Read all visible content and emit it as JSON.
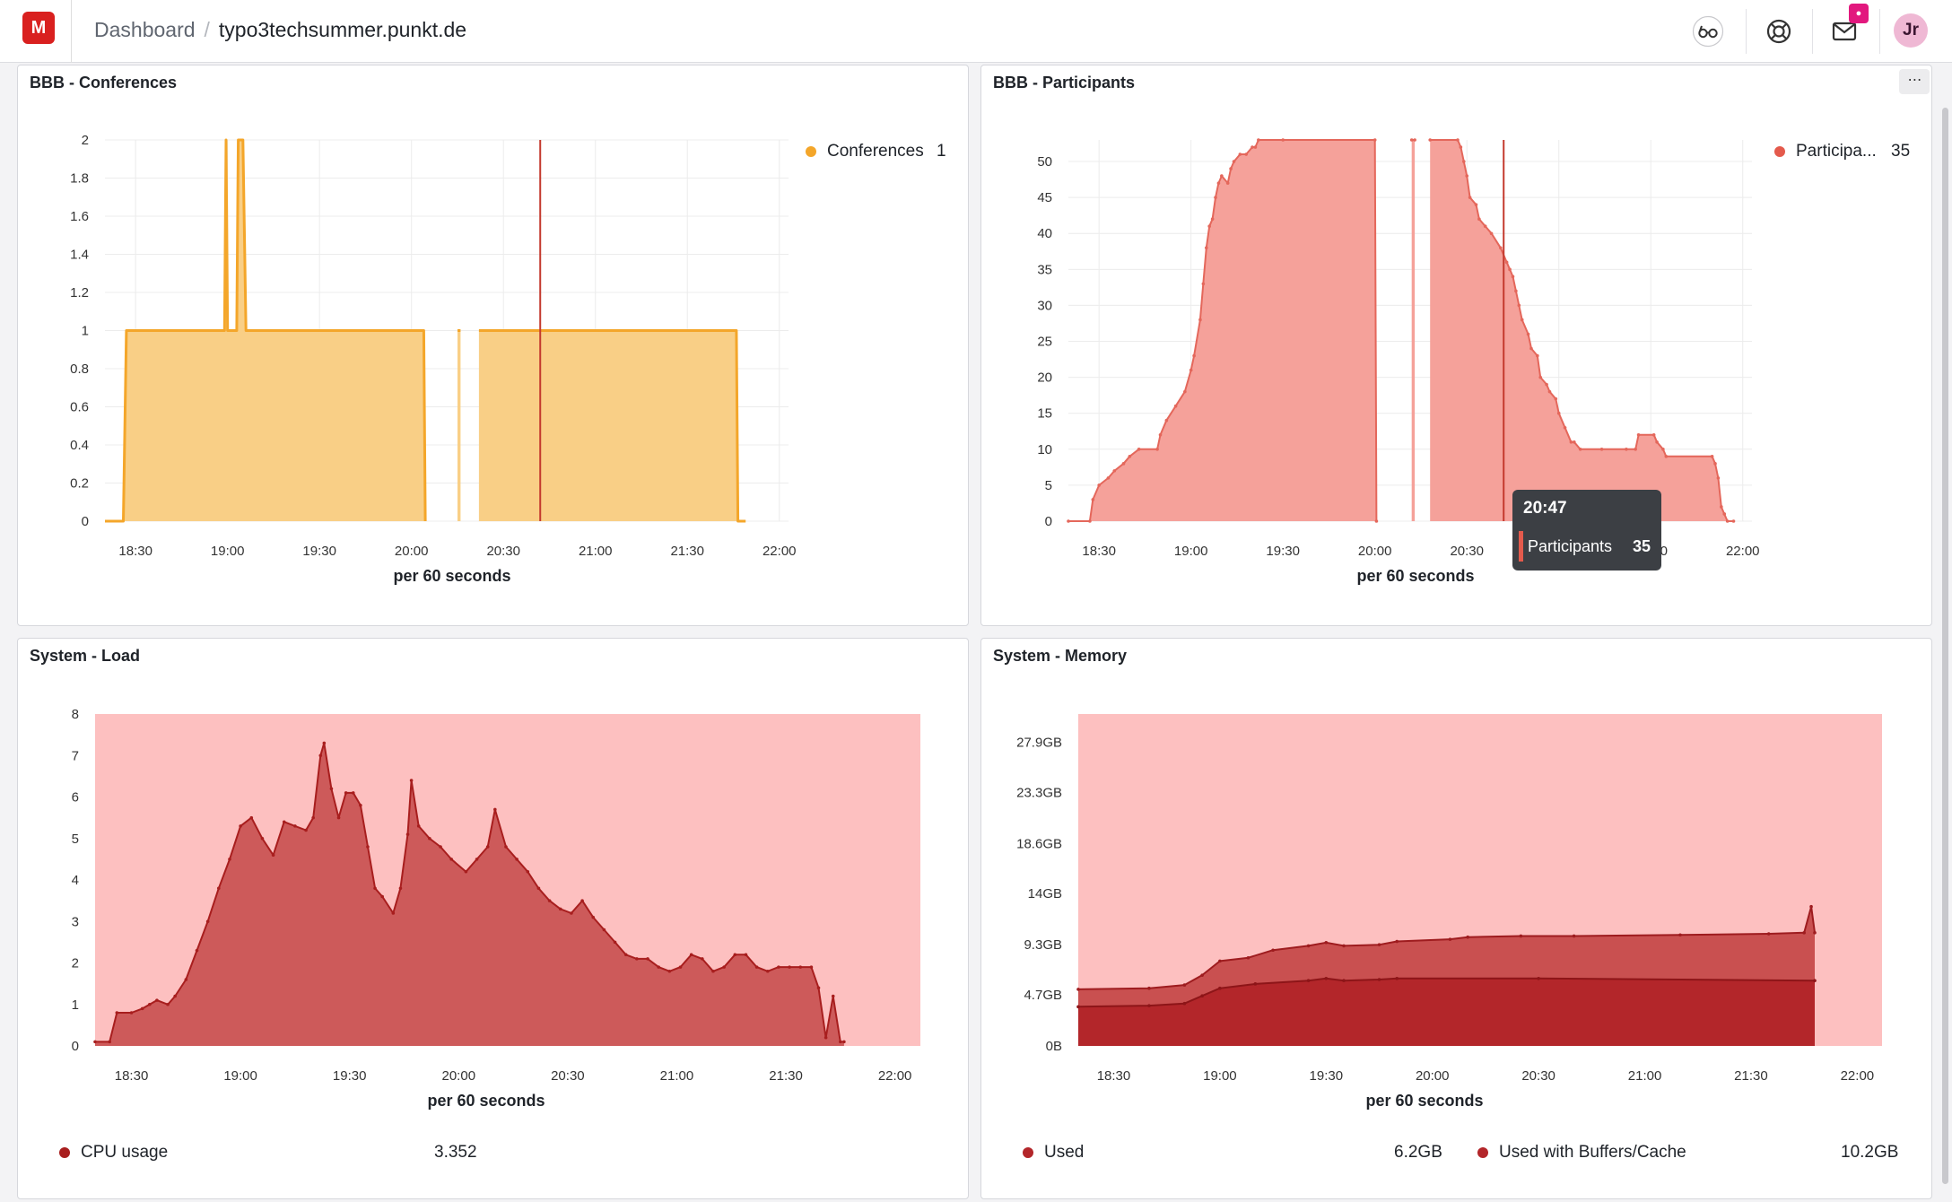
{
  "header": {
    "logo_letter": "M",
    "breadcrumb_parent": "Dashboard",
    "breadcrumb_separator": "/",
    "breadcrumb_current": "typo3techsummer.punkt.de",
    "icons": [
      "glasses-icon",
      "support-lifebuoy-icon",
      "mail-icon"
    ],
    "avatar_initials": "Jr"
  },
  "panels": {
    "conferences": {
      "title": "BBB - Conferences",
      "legend_name": "Conferences",
      "legend_value": "1",
      "xlabel": "per 60 seconds"
    },
    "participants": {
      "title": "BBB - Participants",
      "legend_name": "Participa...",
      "legend_value": "35",
      "xlabel": "per 60 seconds",
      "menu_label": "⋯",
      "tooltip": {
        "time": "20:47",
        "series": "Participants",
        "value": "35"
      }
    },
    "load": {
      "title": "System - Load",
      "legend_name": "CPU usage",
      "legend_value": "3.352",
      "xlabel": "per 60 seconds"
    },
    "memory": {
      "title": "System - Memory",
      "legend_used_name": "Used",
      "legend_used_value": "6.2GB",
      "legend_buffers_name": "Used with Buffers/Cache",
      "legend_buffers_value": "10.2GB",
      "xlabel": "per 60 seconds"
    }
  },
  "colors": {
    "conferences": "#f4a62a",
    "conferences_fill": "#f9cf86",
    "participants": "#e4675b",
    "participants_fill": "#f5a19a",
    "load_line": "#a81e1e",
    "load_fill": "#cd5a5a",
    "load_bg": "#fdc0c0",
    "mem_used": "#b3262a",
    "mem_buffers": "#c95050",
    "mem_bg": "#fdc0c0",
    "crosshair": "#c43a2e"
  },
  "chart_data": [
    {
      "id": "conferences",
      "type": "area",
      "title": "BBB - Conferences",
      "xlabel": "per 60 seconds",
      "ylabel": "",
      "x_ticks": [
        "18:30",
        "19:00",
        "19:30",
        "20:00",
        "20:30",
        "21:00",
        "21:30",
        "22:00"
      ],
      "x_range_min": [
        -10,
        213
      ],
      "ylim": [
        0,
        2
      ],
      "y_ticks": [
        "0",
        "0.2",
        "0.4",
        "0.6",
        "0.8",
        "1",
        "1.2",
        "1.4",
        "1.6",
        "1.8",
        "2"
      ],
      "series": [
        {
          "name": "Conferences",
          "segments": [
            [
              [
                -10,
                0
              ],
              [
                -4,
                0
              ],
              [
                -3,
                1
              ],
              [
                0,
                1
              ],
              [
                29,
                1
              ],
              [
                29.5,
                2
              ],
              [
                30,
                1
              ],
              [
                33,
                1
              ],
              [
                33.5,
                2
              ],
              [
                35,
                2
              ],
              [
                36,
                1
              ],
              [
                45,
                1
              ],
              [
                60,
                1
              ],
              [
                94,
                1
              ],
              [
                94.5,
                0
              ]
            ],
            [
              [
                105,
                1
              ],
              [
                106,
                1
              ]
            ],
            [
              [
                112,
                1
              ],
              [
                130,
                1
              ],
              [
                160,
                1
              ],
              [
                196,
                1
              ],
              [
                196.5,
                0
              ],
              [
                199,
                0
              ]
            ]
          ]
        }
      ],
      "crosshair_min": 132,
      "grid": true,
      "legend": "top-right"
    },
    {
      "id": "participants",
      "type": "area",
      "title": "BBB - Participants",
      "xlabel": "per 60 seconds",
      "ylabel": "",
      "x_ticks": [
        "18:30",
        "19:00",
        "19:30",
        "20:00",
        "20:30",
        "21:00",
        "21:30",
        "22:00"
      ],
      "x_range_min": [
        -10,
        213
      ],
      "ylim": [
        0,
        53
      ],
      "y_ticks": [
        "0",
        "5",
        "10",
        "15",
        "20",
        "25",
        "30",
        "35",
        "40",
        "45",
        "50"
      ],
      "series": [
        {
          "name": "Participants",
          "segments": [
            [
              [
                -10,
                0
              ],
              [
                -3,
                0
              ],
              [
                -2,
                3
              ],
              [
                0,
                5
              ],
              [
                3,
                6
              ],
              [
                5,
                7
              ],
              [
                8,
                8
              ],
              [
                10,
                9
              ],
              [
                13,
                10
              ],
              [
                19,
                10
              ],
              [
                20,
                12
              ],
              [
                22,
                14
              ],
              [
                25,
                16
              ],
              [
                28,
                18
              ],
              [
                30,
                21
              ],
              [
                31,
                23
              ],
              [
                33,
                28
              ],
              [
                34,
                33
              ],
              [
                35,
                38
              ],
              [
                36,
                41
              ],
              [
                37,
                42
              ],
              [
                38,
                45
              ],
              [
                39,
                47
              ],
              [
                40,
                48
              ],
              [
                42,
                47
              ],
              [
                43,
                49
              ],
              [
                44,
                50
              ],
              [
                46,
                51
              ],
              [
                48,
                51
              ],
              [
                50,
                52
              ],
              [
                51,
                52
              ],
              [
                52,
                53
              ],
              [
                60,
                53
              ],
              [
                90,
                53
              ],
              [
                90.5,
                0
              ]
            ],
            [
              [
                102,
                53
              ],
              [
                103,
                53
              ]
            ],
            [
              [
                108,
                53
              ],
              [
                117,
                53
              ],
              [
                118,
                52
              ],
              [
                119,
                50
              ],
              [
                120,
                48
              ],
              [
                121,
                45
              ],
              [
                123,
                44
              ],
              [
                124,
                42
              ],
              [
                126,
                41
              ],
              [
                128,
                40
              ],
              [
                131,
                38
              ],
              [
                133,
                36
              ],
              [
                134,
                35
              ],
              [
                135,
                34
              ],
              [
                136,
                32
              ],
              [
                137,
                30
              ],
              [
                138,
                28
              ],
              [
                140,
                26
              ],
              [
                141,
                24
              ],
              [
                143,
                23
              ],
              [
                144,
                20
              ],
              [
                146,
                19
              ],
              [
                147,
                18
              ],
              [
                149,
                17
              ],
              [
                150,
                15
              ],
              [
                152,
                13
              ],
              [
                154,
                11
              ],
              [
                155,
                11
              ],
              [
                157,
                10
              ],
              [
                164,
                10
              ],
              [
                172,
                10
              ],
              [
                175,
                10
              ],
              [
                176,
                12
              ],
              [
                181,
                12
              ],
              [
                182,
                11
              ],
              [
                184,
                10
              ],
              [
                185,
                9
              ],
              [
                200,
                9
              ],
              [
                201,
                8
              ],
              [
                202,
                6
              ],
              [
                203,
                2
              ],
              [
                204,
                1
              ],
              [
                205,
                0
              ],
              [
                207,
                0
              ]
            ]
          ]
        }
      ],
      "crosshair_min": 132,
      "grid": true,
      "legend": "top-right"
    },
    {
      "id": "load",
      "type": "area",
      "title": "System - Load",
      "xlabel": "per 60 seconds",
      "ylabel": "",
      "x_ticks": [
        "18:30",
        "19:00",
        "19:30",
        "20:00",
        "20:30",
        "21:00",
        "21:30",
        "22:00"
      ],
      "x_range_min": [
        -10,
        217
      ],
      "ylim": [
        0,
        8
      ],
      "y_ticks": [
        "0",
        "1",
        "2",
        "3",
        "4",
        "5",
        "6",
        "7",
        "8"
      ],
      "series": [
        {
          "name": "CPU usage",
          "points": [
            [
              -10,
              0.1
            ],
            [
              -6,
              0.1
            ],
            [
              -4,
              0.8
            ],
            [
              0,
              0.8
            ],
            [
              3,
              0.9
            ],
            [
              5,
              1
            ],
            [
              7,
              1.1
            ],
            [
              10,
              1
            ],
            [
              12,
              1.2
            ],
            [
              15,
              1.6
            ],
            [
              18,
              2.3
            ],
            [
              21,
              3
            ],
            [
              24,
              3.8
            ],
            [
              27,
              4.5
            ],
            [
              30,
              5.3
            ],
            [
              33,
              5.5
            ],
            [
              36,
              5
            ],
            [
              39,
              4.6
            ],
            [
              42,
              5.4
            ],
            [
              45,
              5.3
            ],
            [
              48,
              5.2
            ],
            [
              50,
              5.5
            ],
            [
              52,
              7
            ],
            [
              53,
              7.3
            ],
            [
              55,
              6.2
            ],
            [
              57,
              5.5
            ],
            [
              59,
              6.1
            ],
            [
              61,
              6.1
            ],
            [
              63,
              5.8
            ],
            [
              65,
              4.8
            ],
            [
              67,
              3.8
            ],
            [
              69,
              3.6
            ],
            [
              72,
              3.2
            ],
            [
              74,
              3.8
            ],
            [
              76,
              5.1
            ],
            [
              77,
              6.4
            ],
            [
              79,
              5.3
            ],
            [
              82,
              5
            ],
            [
              85,
              4.8
            ],
            [
              88,
              4.5
            ],
            [
              92,
              4.2
            ],
            [
              95,
              4.5
            ],
            [
              98,
              4.8
            ],
            [
              100,
              5.7
            ],
            [
              103,
              4.8
            ],
            [
              106,
              4.5
            ],
            [
              109,
              4.2
            ],
            [
              112,
              3.8
            ],
            [
              115,
              3.5
            ],
            [
              118,
              3.3
            ],
            [
              121,
              3.2
            ],
            [
              124,
              3.5
            ],
            [
              127,
              3.1
            ],
            [
              130,
              2.8
            ],
            [
              133,
              2.5
            ],
            [
              136,
              2.2
            ],
            [
              139,
              2.1
            ],
            [
              142,
              2.1
            ],
            [
              145,
              1.9
            ],
            [
              148,
              1.8
            ],
            [
              151,
              1.9
            ],
            [
              154,
              2.2
            ],
            [
              157,
              2.1
            ],
            [
              160,
              1.8
            ],
            [
              163,
              1.9
            ],
            [
              166,
              2.2
            ],
            [
              169,
              2.2
            ],
            [
              172,
              1.9
            ],
            [
              175,
              1.8
            ],
            [
              178,
              1.9
            ],
            [
              181,
              1.9
            ],
            [
              184,
              1.9
            ],
            [
              187,
              1.9
            ],
            [
              189,
              1.4
            ],
            [
              191,
              0.2
            ],
            [
              193,
              1.2
            ],
            [
              195,
              0.1
            ],
            [
              196,
              0.1
            ]
          ]
        }
      ],
      "grid": true,
      "legend": "bottom"
    },
    {
      "id": "memory",
      "type": "area",
      "title": "System - Memory",
      "xlabel": "per 60 seconds",
      "ylabel": "",
      "x_ticks": [
        "18:30",
        "19:00",
        "19:30",
        "20:00",
        "20:30",
        "21:00",
        "21:30",
        "22:00"
      ],
      "x_range_min": [
        -10,
        217
      ],
      "ylim": [
        0,
        30.5
      ],
      "y_ticks": [
        "0B",
        "4.7GB",
        "9.3GB",
        "14GB",
        "18.6GB",
        "23.3GB",
        "27.9GB"
      ],
      "y_tick_values": [
        0,
        4.7,
        9.3,
        14,
        18.6,
        23.3,
        27.9
      ],
      "series": [
        {
          "name": "Used with Buffers/Cache",
          "points": [
            [
              -10,
              5.2
            ],
            [
              10,
              5.3
            ],
            [
              20,
              5.6
            ],
            [
              25,
              6.5
            ],
            [
              30,
              7.8
            ],
            [
              38,
              8.1
            ],
            [
              45,
              8.8
            ],
            [
              55,
              9.2
            ],
            [
              60,
              9.5
            ],
            [
              65,
              9.2
            ],
            [
              75,
              9.3
            ],
            [
              80,
              9.6
            ],
            [
              95,
              9.8
            ],
            [
              100,
              10
            ],
            [
              115,
              10.1
            ],
            [
              130,
              10.1
            ],
            [
              160,
              10.2
            ],
            [
              185,
              10.3
            ],
            [
              195,
              10.4
            ],
            [
              197,
              12.8
            ],
            [
              198,
              10.4
            ]
          ]
        },
        {
          "name": "Used",
          "points": [
            [
              -10,
              3.6
            ],
            [
              10,
              3.7
            ],
            [
              20,
              3.9
            ],
            [
              25,
              4.6
            ],
            [
              30,
              5.3
            ],
            [
              40,
              5.7
            ],
            [
              55,
              6
            ],
            [
              60,
              6.2
            ],
            [
              65,
              6
            ],
            [
              75,
              6.1
            ],
            [
              80,
              6.2
            ],
            [
              120,
              6.2
            ],
            [
              198,
              6
            ]
          ]
        }
      ],
      "grid": true,
      "legend": "bottom"
    }
  ]
}
